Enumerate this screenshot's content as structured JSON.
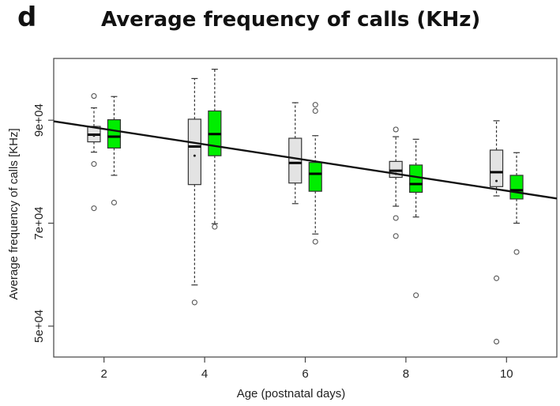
{
  "panel_letter": "d",
  "chart_data": {
    "type": "box",
    "title": "Average frequency of calls (KHz)",
    "xlabel": "Age (postnatal days)",
    "ylabel": "Average frequency of calls [KHz]",
    "xlim": [
      1,
      11
    ],
    "ylim": [
      44000,
      102000
    ],
    "x_ticks": [
      2,
      4,
      6,
      8,
      10
    ],
    "x_tick_labels": [
      "2",
      "4",
      "6",
      "8",
      "10"
    ],
    "y_ticks": [
      50000,
      70000,
      90000
    ],
    "y_tick_labels": [
      "5e+04",
      "7e+04",
      "9e+04"
    ],
    "grid": false,
    "legend": false,
    "series_colors": {
      "grey": "#e3e3e3",
      "green": "#00ee00"
    },
    "boxes": [
      {
        "series": "grey",
        "x": 1.8,
        "whisker_low": 83800,
        "q1": 85800,
        "median": 87200,
        "q3": 88800,
        "whisker_high": 92400,
        "mean": 87000,
        "outliers": [
          94700,
          81500,
          72900
        ]
      },
      {
        "series": "green",
        "x": 2.2,
        "whisker_low": 79300,
        "q1": 84600,
        "median": 86800,
        "q3": 90100,
        "whisker_high": 94600,
        "outliers": [
          74000
        ]
      },
      {
        "series": "grey",
        "x": 3.8,
        "whisker_low": 58000,
        "q1": 77500,
        "median": 84900,
        "q3": 90200,
        "whisker_high": 98100,
        "mean": 83100,
        "outliers": [
          54600
        ]
      },
      {
        "series": "green",
        "x": 4.2,
        "whisker_low": 69900,
        "q1": 83100,
        "median": 87300,
        "q3": 91800,
        "whisker_high": 99900,
        "outliers": [
          69300
        ]
      },
      {
        "series": "grey",
        "x": 5.8,
        "whisker_low": 73800,
        "q1": 77800,
        "median": 81700,
        "q3": 86500,
        "whisker_high": 93400,
        "outliers": []
      },
      {
        "series": "green",
        "x": 6.2,
        "whisker_low": 67900,
        "q1": 76200,
        "median": 79600,
        "q3": 81800,
        "whisker_high": 87000,
        "outliers": [
          93000,
          91800,
          66400
        ]
      },
      {
        "series": "grey",
        "x": 7.8,
        "whisker_low": 73300,
        "q1": 78900,
        "median": 80200,
        "q3": 82000,
        "whisker_high": 86800,
        "mean": 79600,
        "outliers": [
          88200,
          71000,
          67500
        ]
      },
      {
        "series": "green",
        "x": 8.2,
        "whisker_low": 71200,
        "q1": 76000,
        "median": 77600,
        "q3": 81300,
        "whisker_high": 86300,
        "outliers": [
          56000
        ]
      },
      {
        "series": "grey",
        "x": 9.8,
        "whisker_low": 75300,
        "q1": 77100,
        "median": 79900,
        "q3": 84200,
        "whisker_high": 89900,
        "mean": 78200,
        "outliers": [
          59300,
          47000
        ]
      },
      {
        "series": "green",
        "x": 10.2,
        "whisker_low": 70000,
        "q1": 74700,
        "median": 76400,
        "q3": 79300,
        "whisker_high": 83700,
        "outliers": [
          64400
        ]
      }
    ],
    "trend_line": {
      "x1": 1,
      "y1": 89800,
      "x2": 11,
      "y2": 74800
    }
  }
}
